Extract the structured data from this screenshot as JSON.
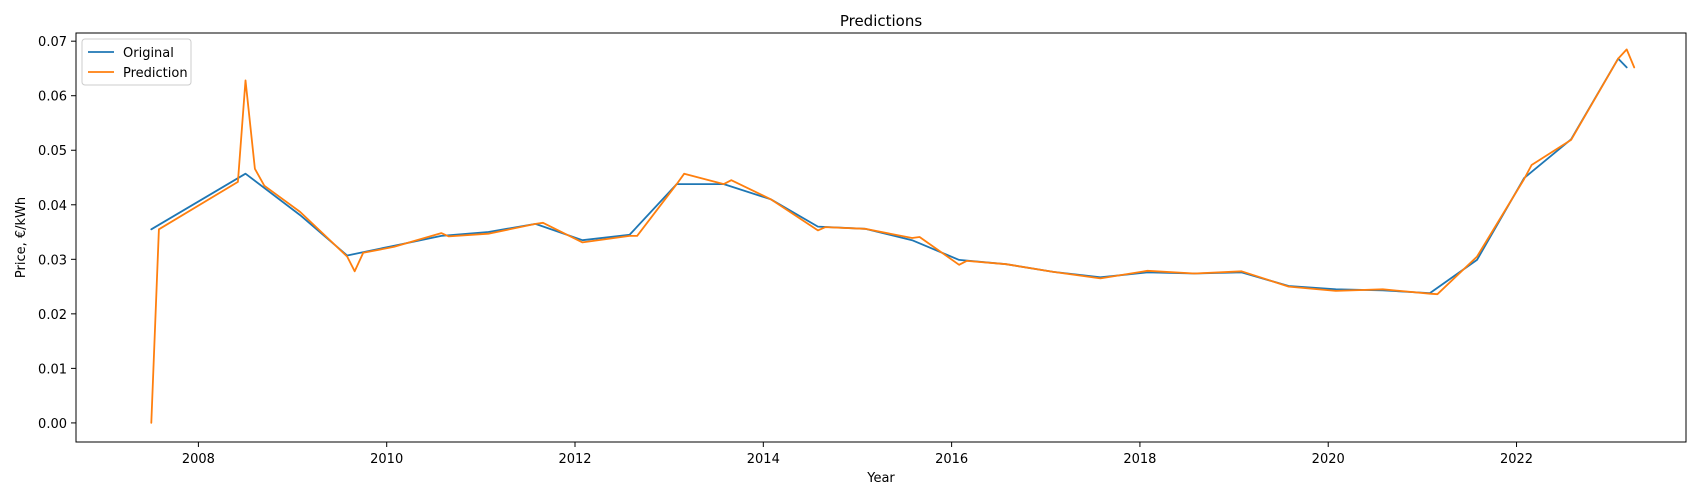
{
  "chart_data": {
    "type": "line",
    "title": "Predictions",
    "xlabel": "Year",
    "ylabel": "Price, €/kWh",
    "xlim": [
      2006.7,
      2023.8
    ],
    "ylim": [
      -0.0035,
      0.0715
    ],
    "xticks": [
      2008,
      2010,
      2012,
      2014,
      2016,
      2018,
      2020,
      2022
    ],
    "xtick_labels": [
      "2008",
      "2010",
      "2012",
      "2014",
      "2016",
      "2018",
      "2020",
      "2022"
    ],
    "yticks": [
      0.0,
      0.01,
      0.02,
      0.03,
      0.04,
      0.05,
      0.06,
      0.07
    ],
    "ytick_labels": [
      "0.00",
      "0.01",
      "0.02",
      "0.03",
      "0.04",
      "0.05",
      "0.06",
      "0.07"
    ],
    "grid": false,
    "legend": "upper-left",
    "series": [
      {
        "name": "Original",
        "color": "#1f77b4",
        "x": [
          2007.5,
          2008.5,
          2009.08,
          2009.58,
          2010.08,
          2010.58,
          2011.08,
          2011.58,
          2012.08,
          2012.58,
          2013.08,
          2013.58,
          2014.08,
          2014.58,
          2015.08,
          2015.58,
          2016.08,
          2016.58,
          2017.08,
          2017.58,
          2018.08,
          2018.58,
          2019.08,
          2019.58,
          2020.08,
          2020.58,
          2021.08,
          2021.58,
          2022.08,
          2022.58,
          2023.08,
          2023.17
        ],
        "y": [
          0.0355,
          0.0457,
          0.0381,
          0.0307,
          0.0325,
          0.0343,
          0.035,
          0.0365,
          0.0335,
          0.0345,
          0.0438,
          0.0438,
          0.041,
          0.036,
          0.0356,
          0.0335,
          0.0299,
          0.0291,
          0.0277,
          0.0267,
          0.0276,
          0.0274,
          0.0276,
          0.0251,
          0.0245,
          0.0243,
          0.0238,
          0.0299,
          0.0449,
          0.052,
          0.0668,
          0.0652
        ]
      },
      {
        "name": "Prediction",
        "color": "#ff7f0e",
        "x": [
          2007.5,
          2007.58,
          2008.42,
          2008.5,
          2008.6,
          2008.7,
          2009.08,
          2009.58,
          2009.66,
          2009.75,
          2010.08,
          2010.58,
          2010.66,
          2011.08,
          2011.58,
          2011.66,
          2012.08,
          2012.58,
          2012.66,
          2013.08,
          2013.16,
          2013.58,
          2013.66,
          2014.08,
          2014.58,
          2014.66,
          2015.08,
          2015.58,
          2015.66,
          2016.08,
          2016.16,
          2016.58,
          2017.08,
          2017.58,
          2018.08,
          2018.58,
          2019.08,
          2019.58,
          2020.08,
          2020.58,
          2021.08,
          2021.16,
          2021.58,
          2022.08,
          2022.16,
          2022.58,
          2023.08,
          2023.17,
          2023.25
        ],
        "y": [
          0.0,
          0.0355,
          0.0442,
          0.0628,
          0.0466,
          0.0435,
          0.0387,
          0.0305,
          0.0278,
          0.0312,
          0.0323,
          0.0348,
          0.0342,
          0.0347,
          0.0365,
          0.0367,
          0.0331,
          0.0343,
          0.0343,
          0.0438,
          0.0457,
          0.0438,
          0.0445,
          0.041,
          0.0353,
          0.0359,
          0.0356,
          0.0339,
          0.0341,
          0.029,
          0.0297,
          0.0291,
          0.0277,
          0.0265,
          0.0279,
          0.0274,
          0.0278,
          0.025,
          0.0242,
          0.0245,
          0.0237,
          0.0236,
          0.0305,
          0.0447,
          0.0473,
          0.0519,
          0.0668,
          0.0685,
          0.0652
        ]
      }
    ]
  }
}
